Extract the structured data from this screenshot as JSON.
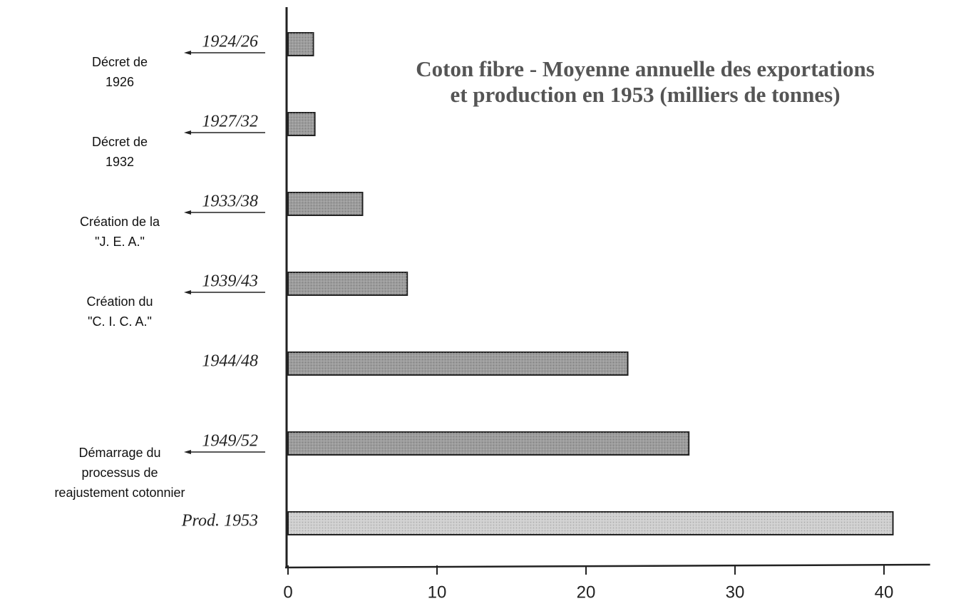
{
  "chart_data": {
    "type": "bar",
    "orientation": "horizontal",
    "title": [
      "Coton fibre - Moyenne annuelle des exportations",
      "et production en 1953 (milliers de tonnes)"
    ],
    "categories": [
      "1924/26",
      "1927/32",
      "1933/38",
      "1939/43",
      "1944/48",
      "1949/52",
      "Prod. 1953"
    ],
    "values": [
      1.7,
      1.8,
      5.0,
      8.0,
      22.8,
      26.9,
      40.6
    ],
    "colors": [
      "#9c9c9c",
      "#9c9c9c",
      "#9c9c9c",
      "#9c9c9c",
      "#9c9c9c",
      "#9c9c9c",
      "#cfcfcf"
    ],
    "annotations": [
      [
        "Décret de",
        "1926"
      ],
      [
        "Décret de",
        "1932"
      ],
      [
        "Création de la",
        "\"J. E. A.\""
      ],
      [
        "Création du",
        "\"C. I. C. A.\""
      ],
      null,
      [
        "Démarrage du",
        "processus de",
        "reajustement cotonnier"
      ],
      null
    ],
    "xlim": [
      0,
      43
    ],
    "xticks": [
      0,
      10,
      20,
      30,
      40
    ],
    "grid": false
  }
}
